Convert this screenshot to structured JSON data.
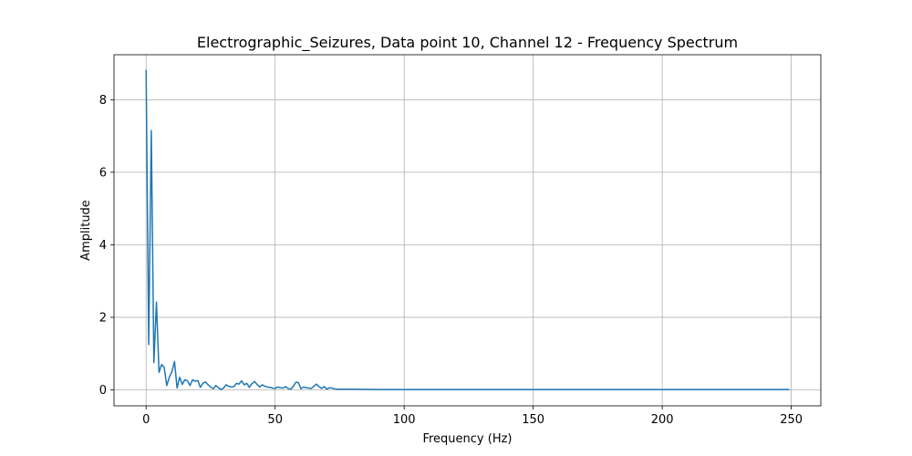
{
  "chart_data": {
    "type": "line",
    "title": "Electrographic_Seizures, Data point 10, Channel 12 - Frequency Spectrum",
    "xlabel": "Frequency (Hz)",
    "ylabel": "Amplitude",
    "xlim": [
      -12.45,
      261.45
    ],
    "ylim": [
      -0.44,
      9.24
    ],
    "xticks": [
      0,
      50,
      100,
      150,
      200,
      250
    ],
    "yticks": [
      0,
      2,
      4,
      6,
      8
    ],
    "grid": true,
    "series_color": "#1f77b4",
    "series": [
      {
        "x": [
          0,
          1,
          2,
          3,
          4,
          5,
          6,
          7,
          8,
          9,
          10,
          11,
          12,
          13,
          14,
          15,
          16,
          17,
          18,
          19,
          20,
          21,
          22,
          23,
          24,
          25,
          26,
          27,
          28,
          29,
          30,
          31,
          32,
          33,
          34,
          35,
          36,
          37,
          38,
          39,
          40,
          41,
          42,
          43,
          44,
          45,
          46,
          47,
          48,
          49,
          50,
          51,
          52,
          53,
          54,
          55,
          56,
          57,
          58,
          59,
          60,
          61,
          62,
          63,
          64,
          65,
          66,
          67,
          68,
          69,
          70,
          71,
          72,
          73,
          74,
          75,
          80,
          90,
          100,
          125,
          150,
          175,
          200,
          225,
          249
        ],
        "y": [
          8.8,
          1.25,
          7.15,
          0.75,
          2.42,
          0.48,
          0.7,
          0.62,
          0.12,
          0.35,
          0.5,
          0.78,
          0.05,
          0.35,
          0.15,
          0.28,
          0.25,
          0.12,
          0.28,
          0.24,
          0.26,
          0.07,
          0.18,
          0.22,
          0.14,
          0.08,
          0.03,
          0.12,
          0.06,
          0.01,
          0.05,
          0.14,
          0.1,
          0.08,
          0.09,
          0.18,
          0.16,
          0.25,
          0.14,
          0.18,
          0.07,
          0.17,
          0.23,
          0.15,
          0.08,
          0.14,
          0.1,
          0.08,
          0.07,
          0.05,
          0.04,
          0.08,
          0.06,
          0.05,
          0.09,
          0.04,
          0.02,
          0.09,
          0.21,
          0.2,
          0.03,
          0.08,
          0.06,
          0.05,
          0.04,
          0.1,
          0.16,
          0.09,
          0.04,
          0.09,
          0.02,
          0.06,
          0.05,
          0.03,
          0.02,
          0.02,
          0.02,
          0.01,
          0.01,
          0.01,
          0.01,
          0.01,
          0.01,
          0.01,
          0.01
        ]
      }
    ]
  }
}
